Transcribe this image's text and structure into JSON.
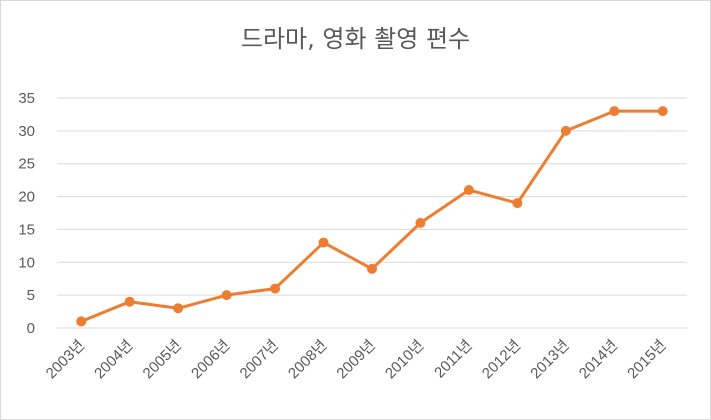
{
  "chart_data": {
    "type": "line",
    "title": "드라마, 영화 촬영 편수",
    "xlabel": "",
    "ylabel": "",
    "categories": [
      "2003년",
      "2004년",
      "2005년",
      "2006년",
      "2007년",
      "2008년",
      "2009년",
      "2010년",
      "2011년",
      "2012년",
      "2013년",
      "2014년",
      "2015년"
    ],
    "series": [
      {
        "values": [
          1,
          4,
          3,
          5,
          6,
          13,
          9,
          16,
          21,
          19,
          30,
          33,
          33
        ]
      }
    ],
    "ylim": [
      0,
      35
    ],
    "yticks": [
      0,
      5,
      10,
      15,
      20,
      25,
      30,
      35
    ],
    "grid": true,
    "legend": "none",
    "colors": {
      "line": "#ED7D31",
      "grid": "#d9d9d9",
      "text": "#595959"
    }
  }
}
